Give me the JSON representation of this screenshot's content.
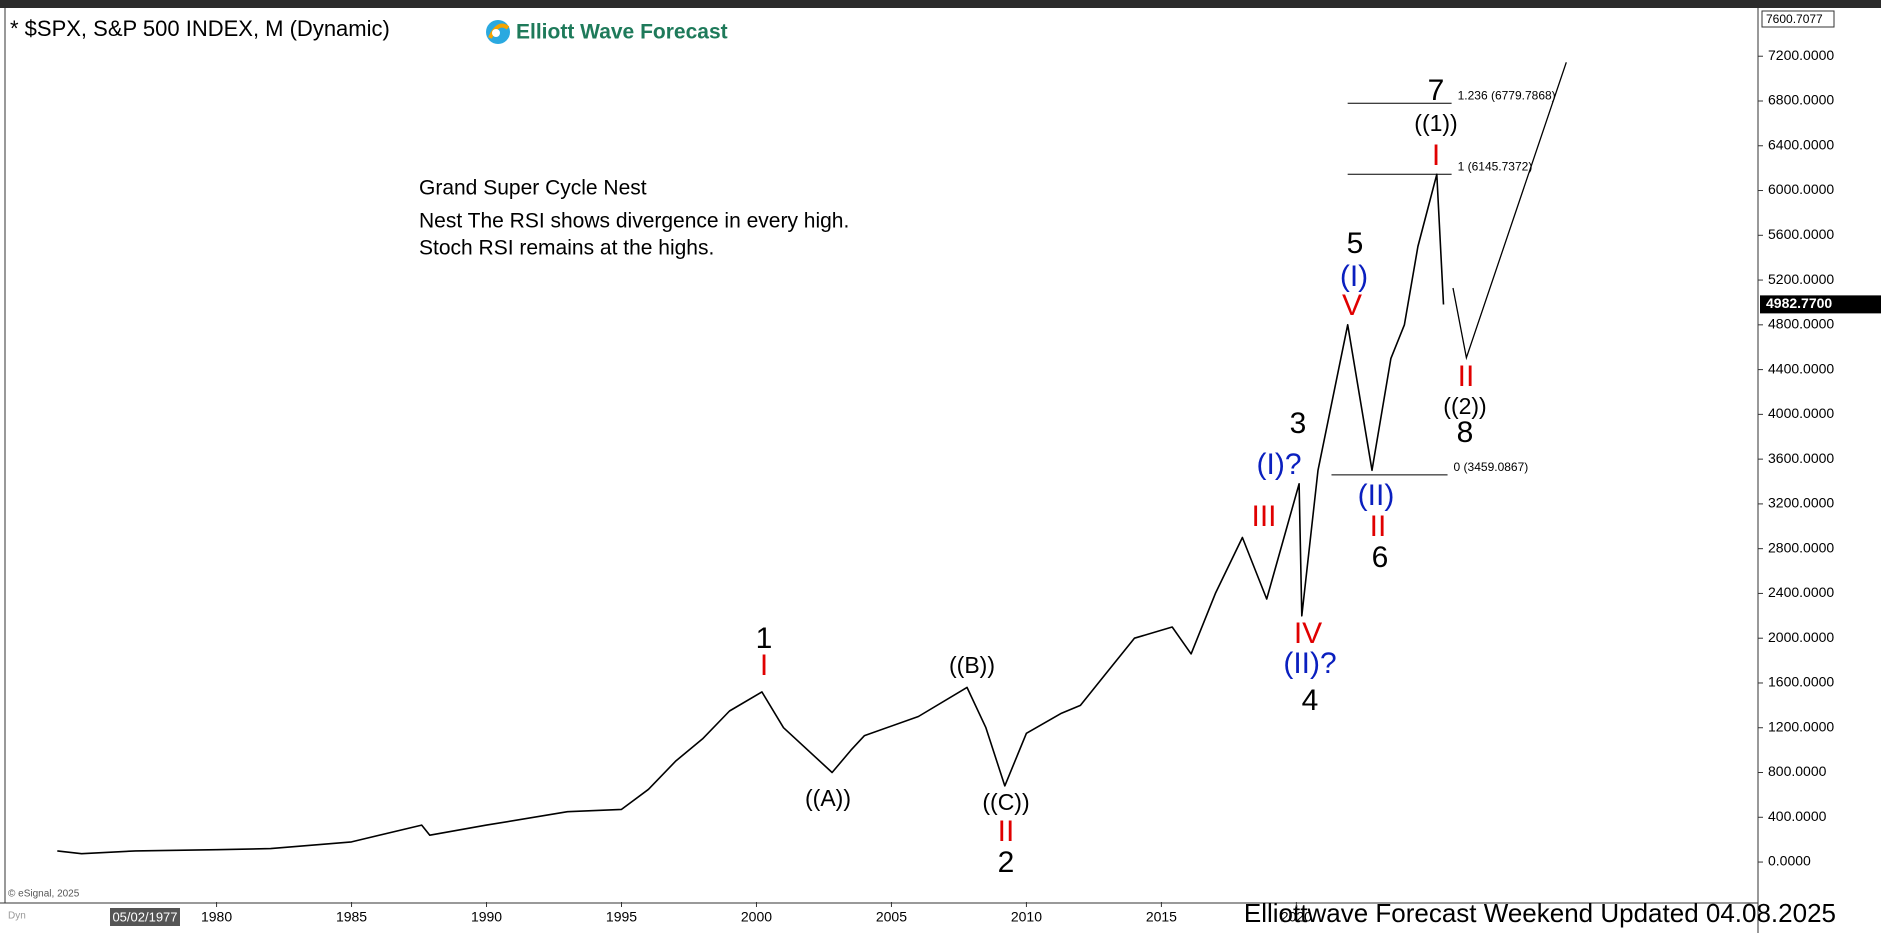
{
  "header": {
    "symbol": "* $SPX, S&P 500 INDEX, M (Dynamic)",
    "brand": "Elliott Wave Forecast"
  },
  "notes": [
    "Grand Super Cycle Nest",
    "Nest The RSI shows divergence in every high.",
    "Stoch RSI remains at the highs."
  ],
  "footer": {
    "text": "Elliottwave Forecast Weekend Updated 04.08.2025",
    "copyright": "© eSignal, 2025",
    "cursor_date": "05/02/1977",
    "dyn": "Dyn"
  },
  "chart_data": {
    "type": "line",
    "color": "#000000",
    "x": [
      1974.1,
      1975,
      1977,
      1980,
      1982,
      1985,
      1987.6,
      1987.9,
      1990,
      1993,
      1995,
      1996,
      1997,
      1998,
      1999,
      2000.2,
      2001,
      2002.8,
      2003.5,
      2004,
      2006,
      2007.8,
      2008.5,
      2009.2,
      2010,
      2011.3,
      2012,
      2013,
      2014,
      2015.4,
      2016.1,
      2017,
      2018,
      2018.9,
      2020.1,
      2020.2,
      2020.8,
      2021.9,
      2022.8,
      2023.5,
      2024,
      2024.5,
      2025.2,
      2025.45
    ],
    "values": [
      100,
      75,
      100,
      110,
      120,
      180,
      330,
      240,
      330,
      450,
      470,
      650,
      900,
      1100,
      1350,
      1520,
      1200,
      800,
      1000,
      1130,
      1300,
      1560,
      1200,
      680,
      1150,
      1330,
      1400,
      1700,
      2000,
      2100,
      1860,
      2400,
      2900,
      2350,
      3380,
      2200,
      3500,
      4800,
      3500,
      4500,
      4800,
      5500,
      6145,
      4982
    ],
    "projection": {
      "color": "#000000",
      "x": [
        2025.8,
        2026.3,
        2030.0
      ],
      "values": [
        5129,
        4506,
        7146
      ]
    },
    "xlim": [
      1972.2,
      2037.1
    ],
    "ylim": [
      -357,
      7613
    ],
    "xticks": [
      1980,
      1985,
      1990,
      1995,
      2000,
      2005,
      2010,
      2015,
      2020
    ],
    "yticks": [
      {
        "value": 0,
        "label": "0.0000"
      },
      {
        "value": 400,
        "label": "400.0000"
      },
      {
        "value": 800,
        "label": "800.0000"
      },
      {
        "value": 1200,
        "label": "1200.0000"
      },
      {
        "value": 1600,
        "label": "1600.0000"
      },
      {
        "value": 2000,
        "label": "2000.0000"
      },
      {
        "value": 2400,
        "label": "2400.0000"
      },
      {
        "value": 2800,
        "label": "2800.0000"
      },
      {
        "value": 3200,
        "label": "3200.0000"
      },
      {
        "value": 3600,
        "label": "3600.0000"
      },
      {
        "value": 4000,
        "label": "4000.0000"
      },
      {
        "value": 4400,
        "label": "4400.0000"
      },
      {
        "value": 4800,
        "label": "4800.0000"
      },
      {
        "value": 5200,
        "label": "5200.0000"
      },
      {
        "value": 5600,
        "label": "5600.0000"
      },
      {
        "value": 6000,
        "label": "6000.0000"
      },
      {
        "value": 6400,
        "label": "6400.0000"
      },
      {
        "value": 6800,
        "label": "6800.0000"
      },
      {
        "value": 7200,
        "label": "7200.0000"
      }
    ],
    "axis_top": {
      "value": 7600.7077,
      "label": "7600.7077"
    },
    "last_price": {
      "value": 4982.77,
      "label": "4982.7700"
    },
    "fib_levels": [
      {
        "value": 6779.7868,
        "label": "1.236 (6779.7868)"
      },
      {
        "value": 6145.7372,
        "label": "1 (6145.7372)"
      },
      {
        "value": 3459.0867,
        "label": "0 (3459.0867)"
      }
    ],
    "annotations": [
      {
        "text": "1",
        "color": "#000000"
      },
      {
        "text": "I",
        "color": "#e00000"
      },
      {
        "text": "((B))",
        "color": "#000000"
      },
      {
        "text": "((A))",
        "color": "#000000"
      },
      {
        "text": "((C))",
        "color": "#000000"
      },
      {
        "text": "II",
        "color": "#e00000"
      },
      {
        "text": "2",
        "color": "#000000"
      },
      {
        "text": "III",
        "color": "#e00000"
      },
      {
        "text": "(I)?",
        "color": "#0a1fbf"
      },
      {
        "text": "3",
        "color": "#000000"
      },
      {
        "text": "IV",
        "color": "#e00000"
      },
      {
        "text": "(II)?",
        "color": "#0a1fbf"
      },
      {
        "text": "4",
        "color": "#000000"
      },
      {
        "text": "5",
        "color": "#000000"
      },
      {
        "text": "(I)",
        "color": "#0a1fbf"
      },
      {
        "text": "V",
        "color": "#e00000"
      },
      {
        "text": "(II)",
        "color": "#0a1fbf"
      },
      {
        "text": "II",
        "color": "#e00000"
      },
      {
        "text": "6",
        "color": "#000000"
      },
      {
        "text": "7",
        "color": "#000000"
      },
      {
        "text": "((1))",
        "color": "#000000"
      },
      {
        "text": "I",
        "color": "#e00000"
      },
      {
        "text": "II",
        "color": "#e00000"
      },
      {
        "text": "((2))",
        "color": "#000000"
      },
      {
        "text": "8",
        "color": "#000000"
      }
    ]
  }
}
